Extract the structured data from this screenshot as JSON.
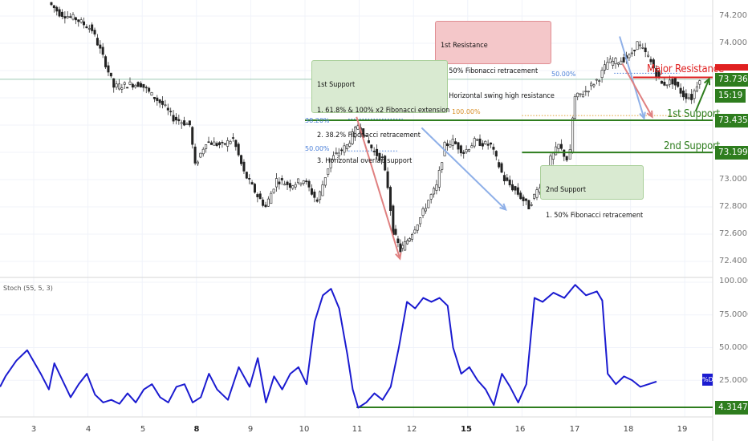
{
  "chart_data": [
    {
      "type": "candlestick",
      "ylim": [
        72.3,
        74.3
      ],
      "y_ticks": [
        "74.200",
        "74.000",
        "73.800",
        "73.600",
        "73.400",
        "73.200",
        "73.000",
        "72.800",
        "72.600",
        "72.400"
      ],
      "x_ticks": [
        "3",
        "4",
        "5",
        "8",
        "9",
        "10",
        "11",
        "12",
        "15",
        "16",
        "17",
        "18",
        "19"
      ],
      "bold_x_ticks": [
        "8",
        "15"
      ],
      "last_price": "73.736",
      "countdown": "15:19",
      "major_resistance": {
        "label": "Major Resistance",
        "value": 73.75,
        "color": "#e02020"
      },
      "first_support": {
        "label": "1st Support",
        "value": 73.435,
        "tag": "73.435",
        "color": "#2e7d1e"
      },
      "second_support": {
        "label": "2nd Support",
        "value": 73.199,
        "tag": "73.199",
        "color": "#2e7d1e"
      },
      "fib_labels": {
        "f100": "100.00%",
        "f50a": "50.00%",
        "f382": "38.20%",
        "f50b": "50.00%"
      },
      "price_path": [
        [
          0.3,
          74.3
        ],
        [
          0.5,
          74.22
        ],
        [
          0.8,
          74.18
        ],
        [
          1.1,
          74.1
        ],
        [
          1.35,
          73.85
        ],
        [
          1.5,
          73.68
        ],
        [
          1.8,
          73.7
        ],
        [
          2.0,
          73.7
        ],
        [
          2.2,
          73.62
        ],
        [
          2.4,
          73.55
        ],
        [
          2.6,
          73.45
        ],
        [
          2.9,
          73.4
        ],
        [
          3.0,
          73.1
        ],
        [
          3.2,
          73.28
        ],
        [
          3.5,
          73.25
        ],
        [
          3.7,
          73.3
        ],
        [
          3.9,
          73.05
        ],
        [
          4.15,
          72.88
        ],
        [
          4.3,
          72.8
        ],
        [
          4.5,
          73.0
        ],
        [
          4.75,
          72.96
        ],
        [
          5.0,
          73.0
        ],
        [
          5.25,
          72.84
        ],
        [
          5.5,
          73.15
        ],
        [
          5.8,
          73.25
        ],
        [
          6.0,
          73.4
        ],
        [
          6.15,
          73.3
        ],
        [
          6.3,
          73.2
        ],
        [
          6.45,
          73.15
        ],
        [
          6.55,
          72.95
        ],
        [
          6.65,
          72.62
        ],
        [
          6.78,
          72.48
        ],
        [
          6.95,
          72.58
        ],
        [
          7.15,
          72.72
        ],
        [
          7.3,
          72.85
        ],
        [
          7.45,
          72.95
        ],
        [
          7.6,
          73.25
        ],
        [
          7.75,
          73.28
        ],
        [
          7.95,
          73.2
        ],
        [
          8.15,
          73.28
        ],
        [
          8.45,
          73.25
        ],
        [
          8.7,
          73.0
        ],
        [
          8.9,
          72.92
        ],
        [
          9.15,
          72.8
        ],
        [
          9.4,
          73.0
        ],
        [
          9.55,
          73.15
        ],
        [
          9.7,
          73.25
        ],
        [
          9.85,
          73.15
        ],
        [
          9.92,
          73.2
        ],
        [
          9.95,
          73.45
        ],
        [
          10.0,
          73.6
        ],
        [
          10.2,
          73.65
        ],
        [
          10.45,
          73.75
        ],
        [
          10.6,
          73.86
        ],
        [
          10.8,
          73.87
        ],
        [
          11.0,
          73.9
        ],
        [
          11.15,
          74.0
        ],
        [
          11.35,
          73.9
        ],
        [
          11.6,
          73.7
        ],
        [
          11.8,
          73.72
        ],
        [
          12.0,
          73.62
        ],
        [
          12.15,
          73.6
        ],
        [
          12.3,
          73.75
        ]
      ],
      "fib_lines": [
        {
          "name": "fib-100",
          "y": 73.47,
          "x0": 9.0,
          "x1": 12.45,
          "color": "#e0a030"
        },
        {
          "name": "fib-50-resistance",
          "y": 73.78,
          "x0": 10.7,
          "x1": 11.9,
          "color": "#4a7fd8"
        },
        {
          "name": "fib-382-support",
          "y": 73.445,
          "x0": 5.8,
          "x1": 6.8,
          "color": "#4a7fd8"
        },
        {
          "name": "fib-50-support",
          "y": 73.21,
          "x0": 5.8,
          "x1": 6.7,
          "color": "#4a7fd8"
        }
      ],
      "arrows": [
        {
          "name": "drop-arrow",
          "from": [
            5.95,
            73.46
          ],
          "to": [
            6.75,
            72.42
          ],
          "color": "#e08080"
        },
        {
          "name": "extension-arrow",
          "from": [
            7.15,
            73.38
          ],
          "to": [
            8.7,
            72.78
          ],
          "color": "#8fb0e8"
        },
        {
          "name": "retrace-arrow",
          "from": [
            10.8,
            74.05
          ],
          "to": [
            11.25,
            73.45
          ],
          "color": "#8fb0e8"
        },
        {
          "name": "resistance-drop-arrow",
          "from": [
            10.85,
            73.85
          ],
          "to": [
            11.4,
            73.46
          ],
          "color": "#e08080"
        },
        {
          "name": "bounce-arrow",
          "from": [
            12.2,
            73.5
          ],
          "to": [
            12.45,
            73.74
          ],
          "color": "#2e7d1e"
        }
      ],
      "annotations": {
        "resistance": [
          "1st Resistance",
          "1. 50% Fibonacci retracement",
          "2. Horizontal swing high resistance"
        ],
        "support1": [
          "1st Support",
          "1. 61.8% & 100% x2 Fibonacci extension",
          "2. 38.2% Fibonacci retracement",
          "3. Horizontal overlap support"
        ],
        "support2": [
          "2nd Support",
          "1. 50% Fibonacci retracement"
        ]
      }
    },
    {
      "type": "line",
      "title": "Stoch (55, 5, 3)",
      "ylim": [
        0,
        100
      ],
      "y_ticks": [
        "100.0000",
        "75.0000",
        "50.0000",
        "25.0000"
      ],
      "percent_tag": "%D",
      "last_value": "4.3147",
      "support_level": 4.3147,
      "series": [
        {
          "color": "#1b1bd0",
          "x": [
            0.0,
            0.1,
            0.3,
            0.5,
            0.75,
            0.9,
            1.0,
            1.15,
            1.3,
            1.45,
            1.6,
            1.75,
            1.9,
            2.05,
            2.2,
            2.35,
            2.5,
            2.65,
            2.8,
            2.95,
            3.1,
            3.25,
            3.4,
            3.55,
            3.7,
            3.85,
            4.0,
            4.2,
            4.4,
            4.6,
            4.75,
            4.9,
            5.05,
            5.2,
            5.35,
            5.5,
            5.65,
            5.8,
            5.95,
            6.1,
            6.25,
            6.4,
            6.5,
            6.6,
            6.75,
            6.9,
            7.05,
            7.2,
            7.35,
            7.5,
            7.65,
            7.8,
            7.95,
            8.1,
            8.25,
            8.35,
            8.5,
            8.65,
            8.8,
            8.95,
            9.1,
            9.25,
            9.4,
            9.55,
            9.7,
            9.85,
            10.0,
            10.2,
            10.4,
            10.6,
            10.8,
            11.0,
            11.1,
            11.2,
            11.35,
            11.5,
            11.65,
            11.8,
            11.95,
            12.1
          ],
          "values": [
            20,
            28,
            40,
            48,
            30,
            18,
            38,
            25,
            12,
            22,
            30,
            14,
            8,
            10,
            7,
            15,
            8,
            18,
            22,
            12,
            8,
            20,
            22,
            8,
            12,
            30,
            18,
            10,
            35,
            20,
            42,
            8,
            28,
            18,
            30,
            35,
            22,
            70,
            90,
            95,
            80,
            45,
            18,
            4,
            8,
            15,
            10,
            20,
            50,
            85,
            80,
            88,
            85,
            88,
            82,
            50,
            30,
            35,
            25,
            18,
            6,
            30,
            20,
            8,
            22,
            88,
            85,
            92,
            88,
            98,
            90,
            93,
            86,
            30,
            22,
            28,
            25,
            20,
            22,
            24
          ]
        }
      ]
    }
  ]
}
